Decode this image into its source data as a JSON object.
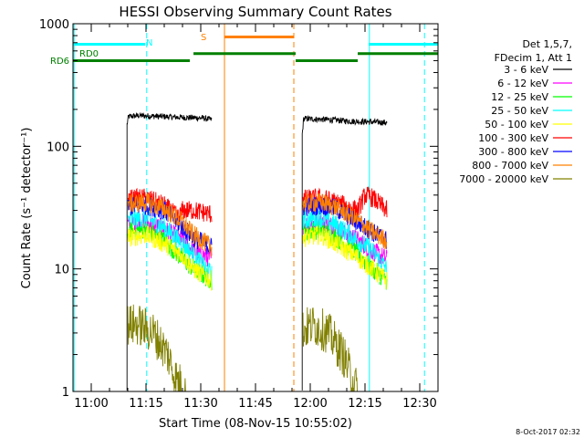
{
  "chart_data": {
    "type": "line",
    "title": "HESSI Observing Summary Count Rates",
    "xlabel": "Start Time (08-Nov-15 10:55:02)",
    "ylabel": "Count Rate (s⁻¹ detector⁻¹)",
    "y_scale": "log",
    "ylim": [
      1,
      1000
    ],
    "xlim_minutes_after_1055": [
      0,
      100
    ],
    "x_ticks": [
      {
        "m": 5,
        "label": "11:00"
      },
      {
        "m": 20,
        "label": "11:15"
      },
      {
        "m": 35,
        "label": "11:30"
      },
      {
        "m": 50,
        "label": "11:45"
      },
      {
        "m": 65,
        "label": "12:00"
      },
      {
        "m": 80,
        "label": "12:15"
      },
      {
        "m": 95,
        "label": "12:30"
      }
    ],
    "y_ticks": [
      {
        "v": 1,
        "label": "1"
      },
      {
        "v": 10,
        "label": "10"
      },
      {
        "v": 100,
        "label": "100"
      },
      {
        "v": 1000,
        "label": "1000"
      }
    ],
    "legend": {
      "position": "right",
      "header": [
        "Det 1,5,7,",
        "FDecim 1, Att 1"
      ],
      "entries": [
        {
          "label": "3 - 6 keV",
          "color": "#000000"
        },
        {
          "label": "6 - 12 keV",
          "color": "#ff00ff"
        },
        {
          "label": "12 - 25 keV",
          "color": "#00ff00"
        },
        {
          "label": "25 - 50 keV",
          "color": "#00ffff"
        },
        {
          "label": "50 - 100 keV",
          "color": "#ffff00"
        },
        {
          "label": "100 - 300 keV",
          "color": "#ff0000"
        },
        {
          "label": "300 - 800 keV",
          "color": "#0000ff"
        },
        {
          "label": "800 - 7000 keV",
          "color": "#ff8000"
        },
        {
          "label": "7000 - 20000 keV",
          "color": "#808000"
        }
      ]
    },
    "series": [
      {
        "name": "3 - 6 keV",
        "color": "#000000",
        "segments": [
          {
            "t": [
              14.8,
              15.2,
              18,
              24,
              30,
              35.5,
              38
            ],
            "v": [
              150,
              175,
              178,
              175,
              172,
              170,
              165
            ]
          },
          {
            "t": [
              62.8,
              63.2,
              70,
              76,
              82,
              86
            ],
            "v": [
              125,
              168,
              165,
              160,
              158,
              156
            ]
          }
        ]
      },
      {
        "name": "6 - 12 keV",
        "color": "#ff00ff",
        "segments": [
          {
            "t": [
              15,
              20,
              25,
              30,
              33,
              38
            ],
            "v": [
              23,
              24,
              21,
              17,
              14,
              12
            ]
          },
          {
            "t": [
              63,
              68,
              72,
              77,
              82,
              86
            ],
            "v": [
              23,
              24,
              22,
              18,
              14,
              12
            ]
          }
        ]
      },
      {
        "name": "12 - 25 keV",
        "color": "#00ff00",
        "segments": [
          {
            "t": [
              15,
              20,
              25,
              30,
              33,
              38
            ],
            "v": [
              20,
              21,
              17,
              12,
              10,
              8
            ]
          },
          {
            "t": [
              63,
              68,
              72,
              77,
              82,
              86
            ],
            "v": [
              20,
              21,
              18,
              14,
              10,
              8
            ]
          }
        ]
      },
      {
        "name": "25 - 50 keV",
        "color": "#00ffff",
        "segments": [
          {
            "t": [
              15,
              20,
              25,
              30,
              33,
              38
            ],
            "v": [
              25,
              26,
              22,
              16,
              13,
              9
            ]
          },
          {
            "t": [
              63,
              68,
              72,
              77,
              82,
              86
            ],
            "v": [
              25,
              26,
              23,
              18,
              14,
              10
            ]
          }
        ]
      },
      {
        "name": "50 - 100 keV",
        "color": "#ffff00",
        "segments": [
          {
            "t": [
              15,
              20,
              25,
              30,
              33,
              38
            ],
            "v": [
              18,
              19,
              16,
              13,
              10,
              8
            ]
          },
          {
            "t": [
              63,
              68,
              72,
              77,
              82,
              86
            ],
            "v": [
              18,
              19,
              16,
              13,
              10,
              8
            ]
          }
        ]
      },
      {
        "name": "100 - 300 keV",
        "color": "#ff0000",
        "segments": [
          {
            "t": [
              15,
              20,
              25,
              29,
              30,
              33,
              38
            ],
            "v": [
              37,
              38,
              33,
              26,
              30,
              30,
              28
            ]
          },
          {
            "t": [
              63,
              68,
              72,
              78,
              80,
              82,
              86
            ],
            "v": [
              37,
              38,
              35,
              30,
              40,
              38,
              30
            ]
          }
        ]
      },
      {
        "name": "300 - 800 keV",
        "color": "#0000ff",
        "segments": [
          {
            "t": [
              15,
              20,
              25,
              30,
              33,
              38
            ],
            "v": [
              32,
              33,
              30,
              22,
              18,
              15
            ]
          },
          {
            "t": [
              63,
              68,
              72,
              77,
              82,
              86
            ],
            "v": [
              32,
              33,
              31,
              25,
              20,
              17
            ]
          }
        ]
      },
      {
        "name": "800 - 7000 keV",
        "color": "#ff8000",
        "segments": [
          {
            "t": [
              15,
              20,
              25,
              30,
              33,
              38
            ],
            "v": [
              34,
              35,
              31,
              24,
              19,
              15
            ]
          },
          {
            "t": [
              63,
              68,
              72,
              77,
              82,
              86
            ],
            "v": [
              34,
              35,
              32,
              26,
              20,
              17
            ]
          }
        ]
      },
      {
        "name": "7000 - 20000 keV",
        "color": "#808000",
        "segments": [
          {
            "t": [
              15,
              18,
              22,
              26,
              28,
              31
            ],
            "v": [
              3.5,
              3.5,
              3,
              2,
              1.3,
              1
            ]
          },
          {
            "t": [
              63,
              66,
              70,
              74,
              76,
              78
            ],
            "v": [
              3.2,
              3.5,
              3,
              2,
              1.4,
              1
            ]
          }
        ]
      }
    ],
    "flags": [
      {
        "name": "N",
        "color": "#00ffff",
        "style": "dashed-bar",
        "bars": [
          {
            "t0": 0,
            "t1": 19.8,
            "level": 680
          },
          {
            "t0": 81,
            "t1": 100,
            "level": 680
          }
        ],
        "vlines": [
          {
            "t": 20.2,
            "dash": true
          },
          {
            "t": 81.2,
            "dash": false
          },
          {
            "t": 96.3,
            "dash": true
          },
          {
            "t": 0.3,
            "dash": false
          }
        ]
      },
      {
        "name": "S",
        "color": "#ff8000",
        "style": "bar",
        "bars": [
          {
            "t0": 41.6,
            "t1": 60.4,
            "level": 780
          }
        ],
        "vlines": [
          {
            "t": 41.5,
            "dash": false
          },
          {
            "t": 60.5,
            "dash": true
          }
        ]
      },
      {
        "name": "RD0",
        "color": "#008000",
        "style": "bar",
        "bars": [
          {
            "t0": 0,
            "t1": 32,
            "level": 500
          },
          {
            "t0": 33,
            "t1": 61,
            "level": 570
          },
          {
            "t0": 61,
            "t1": 78,
            "level": 500
          },
          {
            "t0": 78,
            "t1": 100,
            "level": 570
          }
        ]
      }
    ],
    "flag_labels": [
      {
        "text": "N",
        "color": "#00ffff"
      },
      {
        "text": "S",
        "color": "#ff8000"
      },
      {
        "text": "RD0",
        "color": "#008000"
      },
      {
        "text": "RD6",
        "color": "#008000"
      }
    ],
    "footer_timestamp": "8-Oct-2017 02:32"
  }
}
